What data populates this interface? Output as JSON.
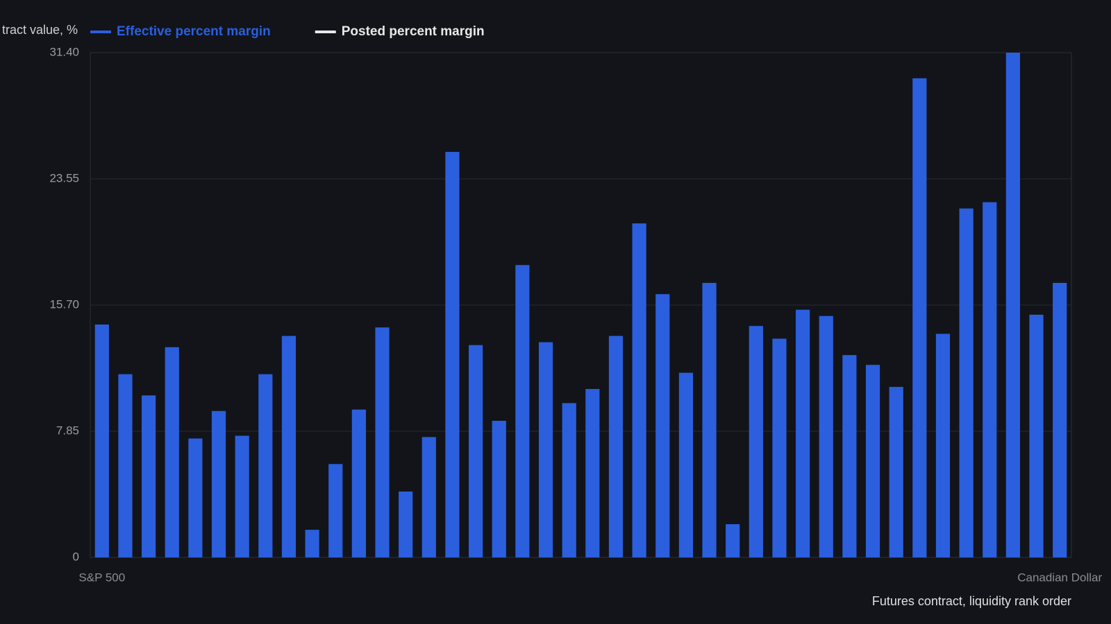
{
  "chart_data": {
    "type": "bar",
    "y_axis_label": "tract value, %",
    "x_axis_label": "Futures contract, liquidity rank order",
    "legend": [
      {
        "name": "Effective percent margin",
        "color": "#2b5fde"
      },
      {
        "name": "Posted percent margin",
        "color": "#e8e8e8"
      }
    ],
    "categories": [
      "S&P 500",
      null,
      null,
      null,
      null,
      null,
      null,
      null,
      null,
      null,
      null,
      null,
      null,
      null,
      null,
      null,
      null,
      null,
      null,
      null,
      null,
      null,
      null,
      null,
      null,
      null,
      null,
      null,
      null,
      null,
      null,
      null,
      null,
      null,
      null,
      null,
      null,
      null,
      null,
      null,
      null,
      "Canadian Dollar"
    ],
    "series": [
      {
        "name": "Effective percent margin",
        "color": "#2b5fde",
        "values": [
          14.49,
          11.4,
          10.08,
          13.08,
          7.4,
          9.11,
          7.57,
          11.4,
          13.78,
          1.72,
          5.81,
          9.2,
          14.31,
          4.1,
          7.49,
          25.23,
          13.21,
          8.5,
          18.19,
          13.39,
          9.6,
          10.48,
          13.78,
          20.78,
          16.38,
          11.49,
          17.08,
          2.07,
          14.4,
          13.61,
          15.41,
          15.02,
          12.59,
          11.98,
          10.61,
          29.81,
          13.91,
          21.71,
          22.1,
          31.4,
          15.1,
          17.08
        ]
      }
    ],
    "ylim": [
      0,
      31.4
    ],
    "yticks": [
      0,
      7.85,
      {
        "value": 15.7,
        "label": "15.70"
      },
      23.55,
      {
        "value": 31.4,
        "label": "31.40"
      }
    ],
    "grid": true
  }
}
